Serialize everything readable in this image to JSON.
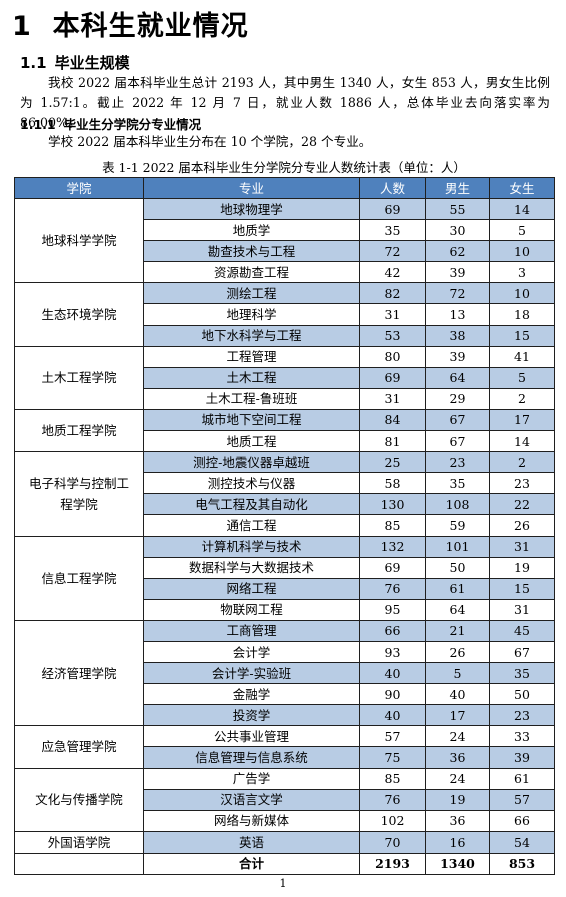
{
  "heading1": {
    "number": "1",
    "title": "本科生就业情况"
  },
  "section_1_1": {
    "number": "1.1",
    "title": "毕业生规模"
  },
  "para1": "我校 2022 届本科毕业生总计 2193 人，其中男生 1340 人，女生 853 人，男女生比例为 1.57:1。截止 2022 年 12 月 7 日，就业人数 1886 人，总体毕业去向落实率为 86.00%。",
  "section_1_1_1": {
    "number": "1.1.1",
    "title": "毕业生分学院分专业情况"
  },
  "para2": "学校 2022 届本科毕业生分布在 10 个学院，28 个专业。",
  "table_caption": "表 1-1 2022 届本科毕业生分学院分专业人数统计表（单位：人）",
  "table": {
    "headers": [
      "学院",
      "专业",
      "人数",
      "男生",
      "女生"
    ],
    "groups": [
      {
        "college": "地球科学学院",
        "rows": [
          {
            "major": "地球物理学",
            "total": "69",
            "male": "55",
            "female": "14"
          },
          {
            "major": "地质学",
            "total": "35",
            "male": "30",
            "female": "5"
          },
          {
            "major": "勘查技术与工程",
            "total": "72",
            "male": "62",
            "female": "10"
          },
          {
            "major": "资源勘查工程",
            "total": "42",
            "male": "39",
            "female": "3"
          }
        ]
      },
      {
        "college": "生态环境学院",
        "rows": [
          {
            "major": "测绘工程",
            "total": "82",
            "male": "72",
            "female": "10"
          },
          {
            "major": "地理科学",
            "total": "31",
            "male": "13",
            "female": "18"
          },
          {
            "major": "地下水科学与工程",
            "total": "53",
            "male": "38",
            "female": "15"
          }
        ]
      },
      {
        "college": "土木工程学院",
        "rows": [
          {
            "major": "工程管理",
            "total": "80",
            "male": "39",
            "female": "41"
          },
          {
            "major": "土木工程",
            "total": "69",
            "male": "64",
            "female": "5"
          },
          {
            "major": "土木工程-鲁班班",
            "total": "31",
            "male": "29",
            "female": "2"
          }
        ]
      },
      {
        "college": "地质工程学院",
        "rows": [
          {
            "major": "城市地下空间工程",
            "total": "84",
            "male": "67",
            "female": "17"
          },
          {
            "major": "地质工程",
            "total": "81",
            "male": "67",
            "female": "14"
          }
        ]
      },
      {
        "college": "电子科学与控制工程学院",
        "rows": [
          {
            "major": "测控-地震仪器卓越班",
            "total": "25",
            "male": "23",
            "female": "2"
          },
          {
            "major": "测控技术与仪器",
            "total": "58",
            "male": "35",
            "female": "23"
          },
          {
            "major": "电气工程及其自动化",
            "total": "130",
            "male": "108",
            "female": "22"
          },
          {
            "major": "通信工程",
            "total": "85",
            "male": "59",
            "female": "26"
          }
        ]
      },
      {
        "college": "信息工程学院",
        "rows": [
          {
            "major": "计算机科学与技术",
            "total": "132",
            "male": "101",
            "female": "31"
          },
          {
            "major": "数据科学与大数据技术",
            "total": "69",
            "male": "50",
            "female": "19"
          },
          {
            "major": "网络工程",
            "total": "76",
            "male": "61",
            "female": "15"
          },
          {
            "major": "物联网工程",
            "total": "95",
            "male": "64",
            "female": "31"
          }
        ]
      },
      {
        "college": "经济管理学院",
        "rows": [
          {
            "major": "工商管理",
            "total": "66",
            "male": "21",
            "female": "45"
          },
          {
            "major": "会计学",
            "total": "93",
            "male": "26",
            "female": "67"
          },
          {
            "major": "会计学-实验班",
            "total": "40",
            "male": "5",
            "female": "35"
          },
          {
            "major": "金融学",
            "total": "90",
            "male": "40",
            "female": "50"
          },
          {
            "major": "投资学",
            "total": "40",
            "male": "17",
            "female": "23"
          }
        ]
      },
      {
        "college": "应急管理学院",
        "rows": [
          {
            "major": "公共事业管理",
            "total": "57",
            "male": "24",
            "female": "33"
          },
          {
            "major": "信息管理与信息系统",
            "total": "75",
            "male": "36",
            "female": "39"
          }
        ]
      },
      {
        "college": "文化与传播学院",
        "rows": [
          {
            "major": "广告学",
            "total": "85",
            "male": "24",
            "female": "61"
          },
          {
            "major": "汉语言文学",
            "total": "76",
            "male": "19",
            "female": "57"
          },
          {
            "major": "网络与新媒体",
            "total": "102",
            "male": "36",
            "female": "66"
          }
        ]
      },
      {
        "college": "外国语学院",
        "rows": [
          {
            "major": "英语",
            "total": "70",
            "male": "16",
            "female": "54"
          }
        ]
      }
    ],
    "total_row": {
      "label": "合计",
      "total": "2193",
      "male": "1340",
      "female": "853"
    }
  },
  "page_number": "1"
}
